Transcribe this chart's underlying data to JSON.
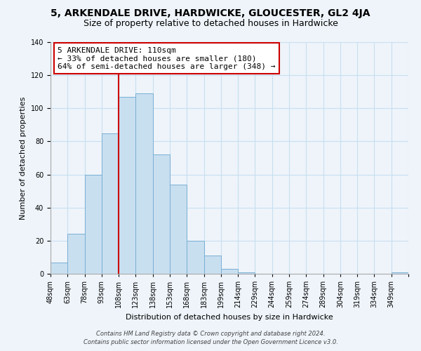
{
  "title": "5, ARKENDALE DRIVE, HARDWICKE, GLOUCESTER, GL2 4JA",
  "subtitle": "Size of property relative to detached houses in Hardwicke",
  "xlabel": "Distribution of detached houses by size in Hardwicke",
  "ylabel": "Number of detached properties",
  "bin_labels": [
    "48sqm",
    "63sqm",
    "78sqm",
    "93sqm",
    "108sqm",
    "123sqm",
    "138sqm",
    "153sqm",
    "168sqm",
    "183sqm",
    "199sqm",
    "214sqm",
    "229sqm",
    "244sqm",
    "259sqm",
    "274sqm",
    "289sqm",
    "304sqm",
    "319sqm",
    "334sqm",
    "349sqm"
  ],
  "bar_values": [
    7,
    24,
    60,
    85,
    107,
    109,
    72,
    54,
    20,
    11,
    3,
    1,
    0,
    0,
    0,
    0,
    0,
    0,
    0,
    0,
    1
  ],
  "bar_color": "#c8dff0",
  "bar_edge_color": "#7aafd4",
  "grid_color": "#c8dff0",
  "vline_x_index": 4,
  "vline_color": "#cc0000",
  "annotation_line1": "5 ARKENDALE DRIVE: 110sqm",
  "annotation_line2": "← 33% of detached houses are smaller (180)",
  "annotation_line3": "64% of semi-detached houses are larger (348) →",
  "annotation_box_color": "white",
  "annotation_box_edge": "#cc0000",
  "ylim": [
    0,
    140
  ],
  "yticks": [
    0,
    20,
    40,
    60,
    80,
    100,
    120,
    140
  ],
  "footer_line1": "Contains HM Land Registry data © Crown copyright and database right 2024.",
  "footer_line2": "Contains public sector information licensed under the Open Government Licence v3.0.",
  "background_color": "#eef4fa",
  "title_fontsize": 10,
  "subtitle_fontsize": 9,
  "axis_label_fontsize": 8,
  "tick_fontsize": 7,
  "annotation_fontsize": 8,
  "footer_fontsize": 6
}
